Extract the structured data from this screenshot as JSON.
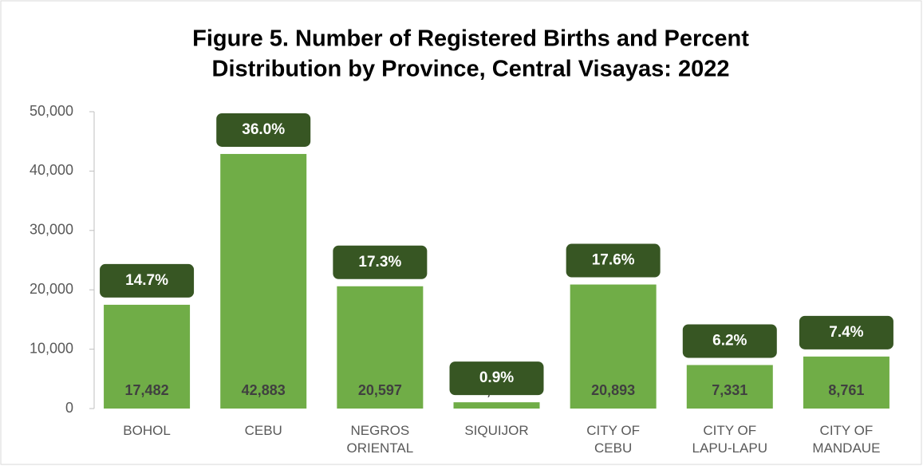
{
  "chart_data": {
    "type": "bar",
    "title": [
      "Figure 5. Number of Registered Births and Percent",
      "Distribution by Province, Central Visayas: 2022"
    ],
    "categories": [
      "BOHOL",
      "CEBU",
      "NEGROS\nORIENTAL",
      "SIQUIJOR",
      "CITY OF\nCEBU",
      "CITY OF\nLAPU-LAPU",
      "CITY OF\nMANDAUE"
    ],
    "values": [
      17482,
      42883,
      20597,
      1057,
      20893,
      7331,
      8761
    ],
    "value_labels": [
      "17,482",
      "42,883",
      "20,597",
      "1,057",
      "20,893",
      "7,331",
      "8,761"
    ],
    "share_labels": [
      "14.7%",
      "36.0%",
      "17.3%",
      "0.9%",
      "17.6%",
      "6.2%",
      "7.4%"
    ],
    "color": "#70ad47",
    "share_color": "#375623",
    "ylim": [
      0,
      50000
    ],
    "yticks": [
      0,
      {
        "value": 10000,
        "label": "10,000"
      },
      {
        "value": 20000,
        "label": "20,000"
      },
      {
        "value": 30000,
        "label": "30,000"
      },
      {
        "value": 40000,
        "label": "40,000"
      },
      {
        "value": 50000,
        "label": "50,000"
      }
    ],
    "grid": false
  }
}
